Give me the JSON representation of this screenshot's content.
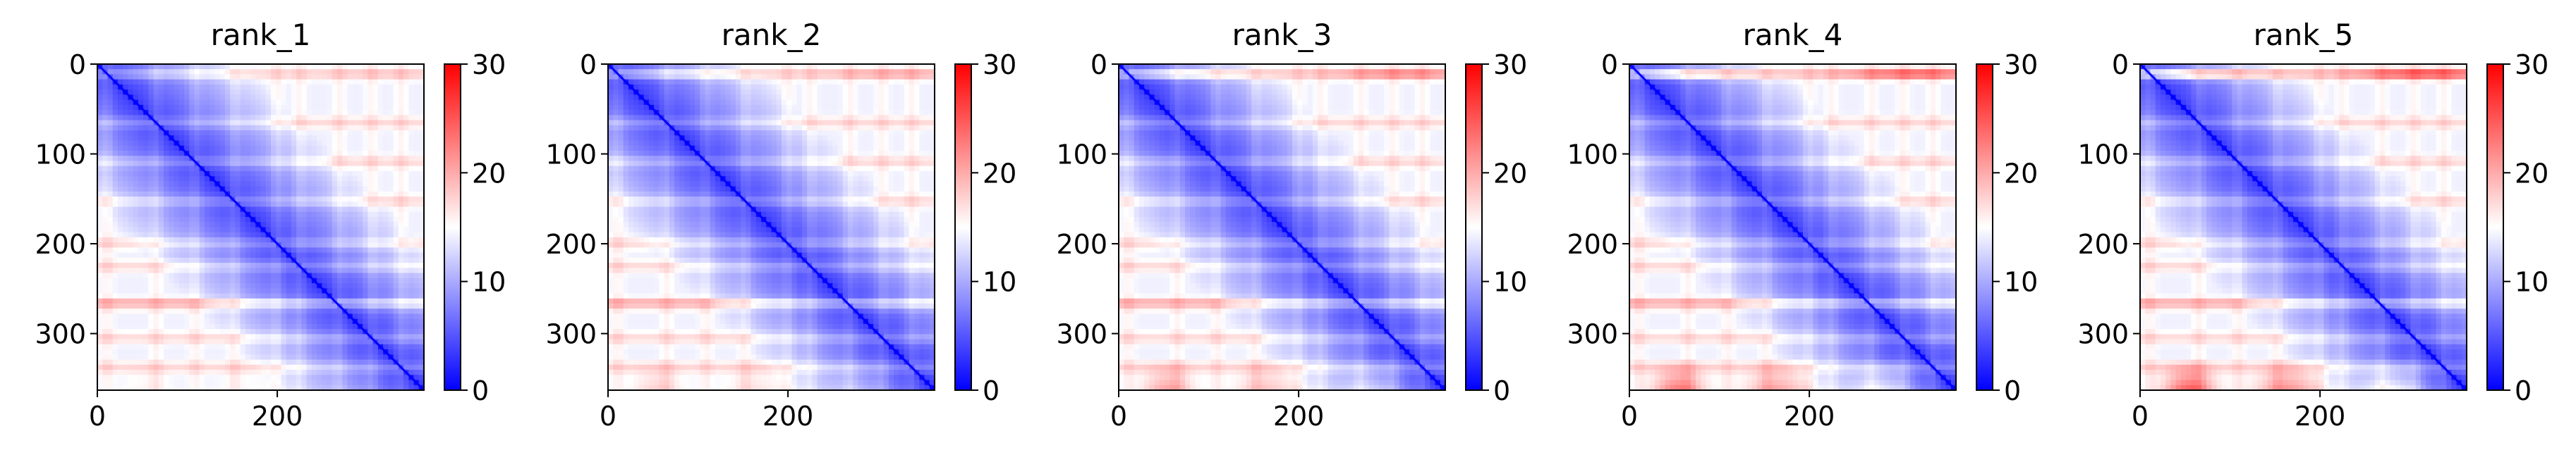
{
  "chart_data": [
    {
      "type": "heatmap",
      "title": "rank_1",
      "xlim": [
        0,
        363
      ],
      "ylim": [
        363,
        0
      ],
      "x_ticks": [
        "0",
        "200"
      ],
      "y_ticks": [
        "0",
        "100",
        "200",
        "300"
      ],
      "colorbar": {
        "range": [
          0,
          30
        ],
        "ticks": [
          "0",
          "10",
          "20",
          "30"
        ],
        "colormap": "bwr"
      },
      "red_level": 0.15
    },
    {
      "type": "heatmap",
      "title": "rank_2",
      "xlim": [
        0,
        363
      ],
      "ylim": [
        363,
        0
      ],
      "x_ticks": [
        "0",
        "200"
      ],
      "y_ticks": [
        "0",
        "100",
        "200",
        "300"
      ],
      "colorbar": {
        "range": [
          0,
          30
        ],
        "ticks": [
          "0",
          "10",
          "20",
          "30"
        ],
        "colormap": "bwr"
      },
      "red_level": 0.35
    },
    {
      "type": "heatmap",
      "title": "rank_3",
      "xlim": [
        0,
        363
      ],
      "ylim": [
        363,
        0
      ],
      "x_ticks": [
        "0",
        "200"
      ],
      "y_ticks": [
        "0",
        "100",
        "200",
        "300"
      ],
      "colorbar": {
        "range": [
          0,
          30
        ],
        "ticks": [
          "0",
          "10",
          "20",
          "30"
        ],
        "colormap": "bwr"
      },
      "red_level": 0.6
    },
    {
      "type": "heatmap",
      "title": "rank_4",
      "xlim": [
        0,
        363
      ],
      "ylim": [
        363,
        0
      ],
      "x_ticks": [
        "0",
        "200"
      ],
      "y_ticks": [
        "0",
        "100",
        "200",
        "300"
      ],
      "colorbar": {
        "range": [
          0,
          30
        ],
        "ticks": [
          "0",
          "10",
          "20",
          "30"
        ],
        "colormap": "bwr"
      },
      "red_level": 0.85
    },
    {
      "type": "heatmap",
      "title": "rank_5",
      "xlim": [
        0,
        363
      ],
      "ylim": [
        363,
        0
      ],
      "x_ticks": [
        "0",
        "200"
      ],
      "y_ticks": [
        "0",
        "100",
        "200",
        "300"
      ],
      "colorbar": {
        "range": [
          0,
          30
        ],
        "ticks": [
          "0",
          "10",
          "20",
          "30"
        ],
        "colormap": "bwr"
      },
      "red_level": 1.0
    }
  ]
}
